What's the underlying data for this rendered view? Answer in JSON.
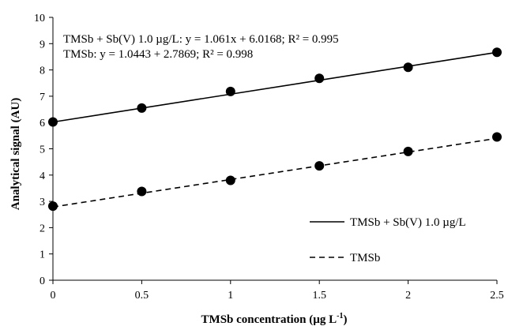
{
  "chart_data": {
    "type": "scatter",
    "title": "",
    "xlabel": "TMSb concentration (µg L",
    "xlabel_sup": "-1",
    "xlabel_close": ")",
    "ylabel": "Analytical signal (AU)",
    "xlim": [
      0,
      2.5
    ],
    "ylim": [
      0,
      10
    ],
    "x_ticks": [
      "0",
      "0.5",
      "1",
      "1.5",
      "2",
      "2.5"
    ],
    "x_tick_values": [
      0,
      0.5,
      1,
      1.5,
      2,
      2.5
    ],
    "y_ticks": [
      "0",
      "1",
      "2",
      "3",
      "4",
      "5",
      "6",
      "7",
      "8",
      "9",
      "10"
    ],
    "y_tick_values": [
      0,
      1,
      2,
      3,
      4,
      5,
      6,
      7,
      8,
      9,
      10
    ],
    "grid": false,
    "legend_position": "bottom-right",
    "series": [
      {
        "name": "TMSb + Sb(V) 1.0 µg/L",
        "line_style": "solid",
        "x": [
          0,
          0.5,
          1,
          1.5,
          2,
          2.5
        ],
        "y": [
          6.02,
          6.55,
          7.18,
          7.68,
          8.1,
          8.67
        ],
        "fit": {
          "slope": 1.061,
          "intercept": 6.0168
        }
      },
      {
        "name": "TMSb",
        "line_style": "dashed",
        "x": [
          0,
          0.5,
          1,
          1.5,
          2,
          2.5
        ],
        "y": [
          2.82,
          3.38,
          3.8,
          4.35,
          4.9,
          5.45
        ],
        "fit": {
          "slope": 1.0443,
          "intercept": 2.7869
        }
      }
    ],
    "annotations": [
      "TMSb + Sb(V) 1.0 µg/L: y = 1.061x + 6.0168;   R² = 0.995",
      "TMSb: y = 1.0443 + 2.7869; R² = 0.998"
    ]
  }
}
